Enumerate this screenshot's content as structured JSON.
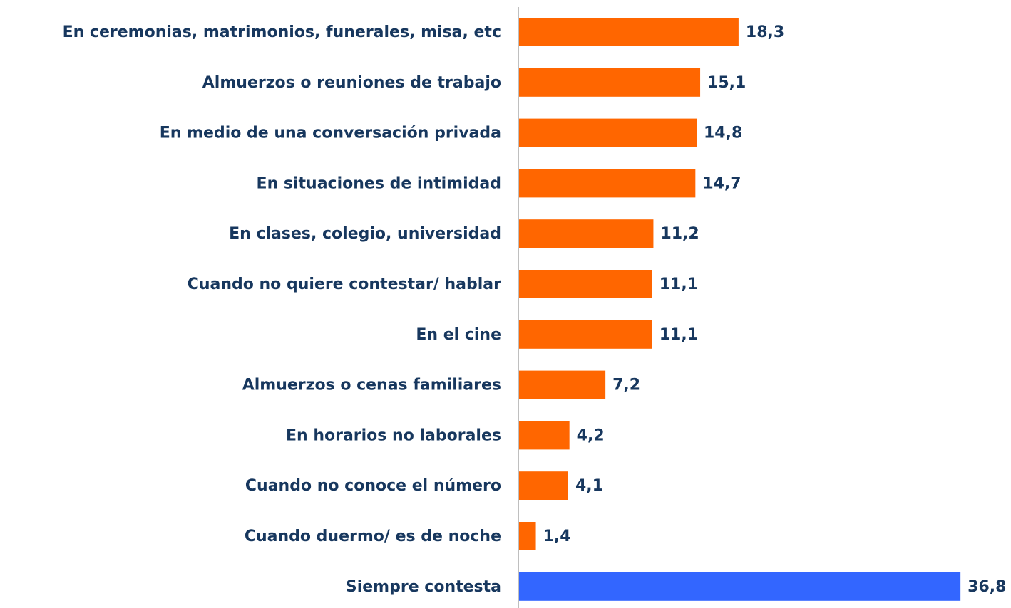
{
  "chart_data": {
    "type": "bar",
    "orientation": "horizontal",
    "categories": [
      "En ceremonias, matrimonios, funerales, misa, etc",
      "Almuerzos o reuniones de trabajo",
      "En medio de una conversación privada",
      "En situaciones de intimidad",
      "En clases, colegio, universidad",
      "Cuando no quiere contestar/ hablar",
      "En el cine",
      "Almuerzos o cenas familiares",
      "En horarios no laborales",
      "Cuando no conoce el número",
      "Cuando duermo/ es de noche",
      "Siempre contesta"
    ],
    "values": [
      18.3,
      15.1,
      14.8,
      14.7,
      11.2,
      11.1,
      11.1,
      7.2,
      4.2,
      4.1,
      1.4,
      36.8
    ],
    "value_labels": [
      "18,3",
      "15,1",
      "14,8",
      "14,7",
      "11,2",
      "11,1",
      "11,1",
      "7,2",
      "4,2",
      "4,1",
      "1,4",
      "36,8"
    ],
    "colors": [
      "#ff6600",
      "#ff6600",
      "#ff6600",
      "#ff6600",
      "#ff6600",
      "#ff6600",
      "#ff6600",
      "#ff6600",
      "#ff6600",
      "#ff6600",
      "#ff6600",
      "#3366ff"
    ],
    "xlim": [
      0,
      40
    ]
  }
}
